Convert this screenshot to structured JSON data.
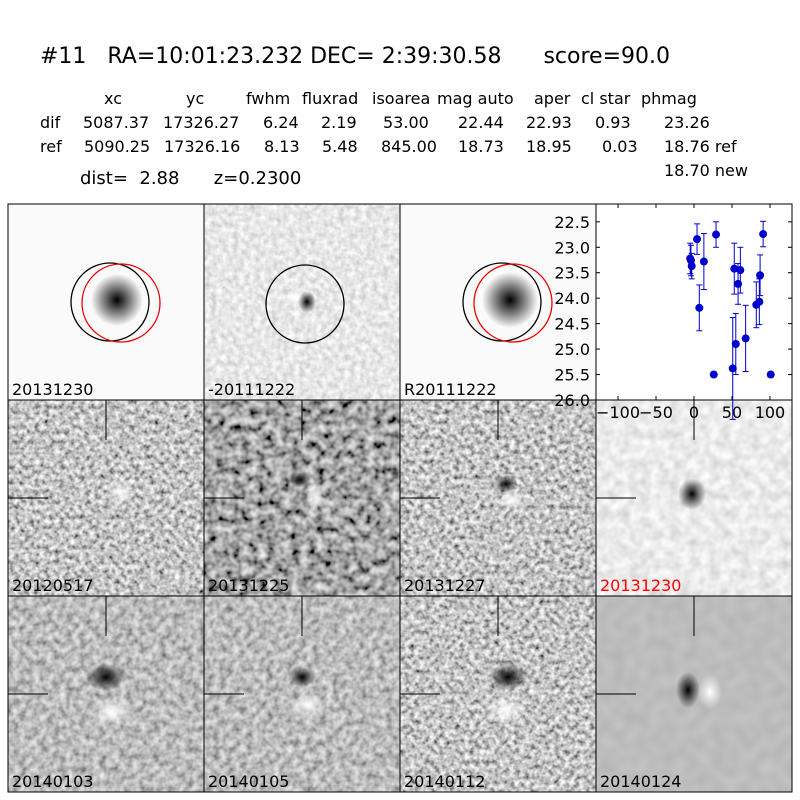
{
  "header": {
    "title": "#11   RA=10:01:23.232 DEC= 2:39:30.58      score=90.0"
  },
  "table": {
    "columns": [
      "xc",
      "yc",
      "fwhm",
      "fluxrad",
      "isoarea",
      "mag auto",
      "aper",
      "cl star",
      "phmag"
    ],
    "rows": [
      [
        "dif",
        "5087.37",
        "17326.27",
        "6.24",
        "2.19",
        "53.00",
        "22.44",
        "22.93",
        "0.93",
        "23.26"
      ],
      [
        "ref",
        "5090.25",
        "17326.16",
        "8.13",
        "5.48",
        "845.00",
        "18.73",
        "18.95",
        "0.03",
        "18.76 ref"
      ]
    ],
    "note": "18.70 new"
  },
  "dist_line": "dist=  2.88      z=0.2300",
  "panels": [
    {
      "label": "20131230"
    },
    {
      "label": "-20111222"
    },
    {
      "label": "R20111222"
    },
    {
      "label": "20120517"
    },
    {
      "label": "20131225"
    },
    {
      "label": "20131227"
    },
    {
      "label": "20131230",
      "label_color": "red"
    },
    {
      "label": "20140103"
    },
    {
      "label": "20140105"
    },
    {
      "label": "20140112"
    },
    {
      "label": "20140124"
    }
  ],
  "chart_data": {
    "type": "scatter",
    "x": [
      -5,
      -3,
      -4,
      4,
      7,
      13,
      26,
      29,
      51,
      53,
      55,
      58,
      61,
      68,
      82,
      86,
      87,
      91,
      101
    ],
    "series": [
      {
        "color": "#0000cc",
        "values": [
          23.22,
          23.37,
          23.26,
          22.84,
          24.19,
          23.28,
          25.5,
          22.75,
          25.38,
          23.42,
          24.9,
          23.72,
          23.45,
          24.79,
          24.13,
          24.07,
          23.55,
          22.74,
          25.5
        ],
        "errors": [
          0.3,
          0.25,
          0.3,
          0.3,
          0.45,
          0.55,
          0.05,
          0.25,
          1.0,
          0.5,
          0.6,
          0.4,
          0.45,
          0.65,
          0.45,
          0.45,
          0.4,
          0.25,
          0.05
        ]
      }
    ],
    "xlim": [
      -129,
      129
    ],
    "ylim": [
      26.0,
      22.15
    ],
    "xticks": [
      {
        "value": -100,
        "label": "−100"
      },
      {
        "value": -50,
        "label": "−50"
      },
      0,
      50,
      100
    ],
    "yticks": [
      22.5,
      {
        "value": 23,
        "label": "23.0"
      },
      23.5,
      {
        "value": 24,
        "label": "24.0"
      },
      24.5,
      {
        "value": 25,
        "label": "25.0"
      },
      25.5,
      {
        "value": 26,
        "label": "26.0"
      }
    ]
  }
}
